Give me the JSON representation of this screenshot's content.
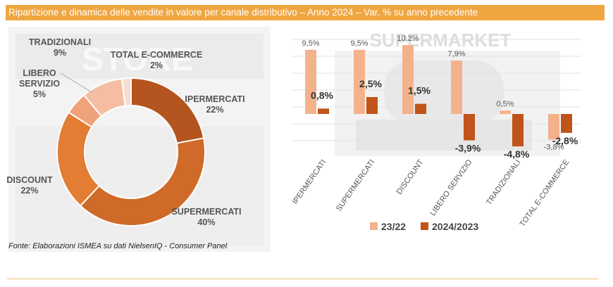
{
  "header": {
    "title": "Ripartizione e dinamica delle vendite in valore per canale distributivo – Anno 2024 – Var. % su anno precedente"
  },
  "footer": {
    "source": "Fonte: Elaborazioni ISMEA su dati NielsenIQ - Consumer Panel"
  },
  "watermarks": {
    "store": "STORE",
    "supermarket": "SUPERMARKET"
  },
  "chart_data": [
    {
      "type": "pie",
      "subtype": "donut",
      "categories": [
        "IPERMERCATI",
        "SUPERMERCATI",
        "DISCOUNT",
        "LIBERO SERVIZIO",
        "TRADIZIONALI",
        "TOTAL E-COMMERCE"
      ],
      "values": [
        22,
        40,
        22,
        5,
        9,
        2
      ],
      "display_labels": [
        [
          "IPERMERCATI",
          "22%"
        ],
        [
          "SUPERMERCATI",
          "40%"
        ],
        [
          "DISCOUNT",
          "22%"
        ],
        [
          "LIBERO",
          "SERVIZIO",
          "5%"
        ],
        [
          "TRADIZIONALI",
          "9%"
        ],
        [
          "TOTAL E-COMMERCE",
          "2%"
        ]
      ],
      "colors": [
        "#b4541e",
        "#cf6a28",
        "#e27d33",
        "#f0a27a",
        "#f5bea3",
        "#fadccf"
      ]
    },
    {
      "type": "bar",
      "categories": [
        "IPERMERCATI",
        "SUPERMERCATI",
        "DISCOUNT",
        "LIBERO SERVIZIO",
        "TRADIZIONALI",
        "TOTAL E-COMMERCE"
      ],
      "series": [
        {
          "name": "23/22",
          "values": [
            9.5,
            9.5,
            10.2,
            7.9,
            0.5,
            -3.8
          ],
          "labels": [
            "9,5%",
            "9,5%",
            "10,2%",
            "7,9%",
            "0,5%",
            "-3,8%"
          ],
          "color": "#f4b28c"
        },
        {
          "name": "2024/2023",
          "values": [
            0.8,
            2.5,
            1.5,
            -3.9,
            -4.8,
            -2.8
          ],
          "labels": [
            "0,8%",
            "2,5%",
            "1,5%",
            "-3,9%",
            "-4,8%",
            "-2,8%"
          ],
          "color": "#c0541a"
        }
      ],
      "legend": "bottom",
      "grid": true
    }
  ]
}
